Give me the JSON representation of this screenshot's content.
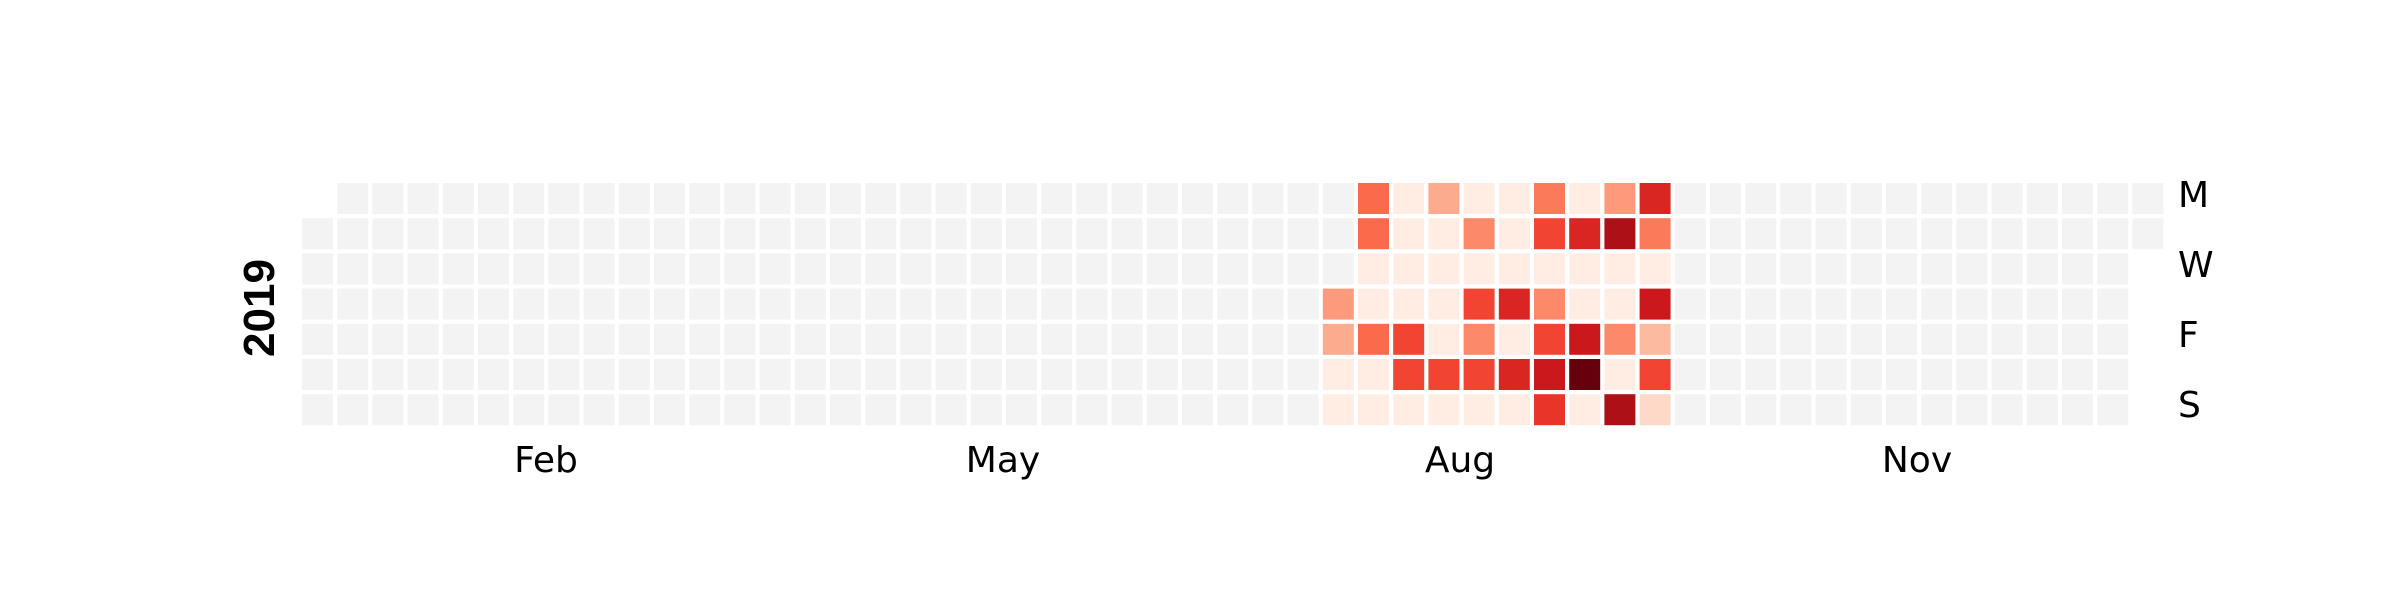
{
  "chart_data": {
    "type": "heatmap",
    "subtype": "calendar",
    "year": "2019",
    "colormap": "Reds",
    "empty_color": "#f3f3f3",
    "grid_lines": "white",
    "legend": "none",
    "row_labels": [
      "M",
      "",
      "W",
      "",
      "F",
      "",
      "S"
    ],
    "col_labels": [
      "Feb",
      "May",
      "Aug",
      "Nov"
    ],
    "value_range": [
      0,
      1
    ],
    "values_note": "Relative intensity (0-1) by week and weekday; days not listed are empty.",
    "active_weeks": [
      {
        "week": 29,
        "days": [
          0,
          0,
          0,
          0.35,
          0.3,
          0.05,
          0.05
        ]
      },
      {
        "week": 30,
        "days": [
          0.5,
          0.5,
          0.05,
          0.05,
          0.5,
          0.05,
          0.05
        ]
      },
      {
        "week": 31,
        "days": [
          0.05,
          0.05,
          0.05,
          0.05,
          0.6,
          0.6,
          0.05
        ]
      },
      {
        "week": 32,
        "days": [
          0.3,
          0.05,
          0.05,
          0.05,
          0.05,
          0.6,
          0.05
        ]
      },
      {
        "week": 33,
        "days": [
          0.05,
          0.4,
          0.05,
          0.6,
          0.4,
          0.6,
          0.05
        ]
      },
      {
        "week": 34,
        "days": [
          0.05,
          0.05,
          0.05,
          0.7,
          0.05,
          0.7,
          0.05
        ]
      },
      {
        "week": 35,
        "days": [
          0.45,
          0.6,
          0.05,
          0.4,
          0.6,
          0.75,
          0.65
        ]
      },
      {
        "week": 36,
        "days": [
          0.05,
          0.7,
          0.05,
          0.05,
          0.75,
          1.0,
          0.05
        ]
      },
      {
        "week": 37,
        "days": [
          0.35,
          0.85,
          0.05,
          0.05,
          0.4,
          0.05,
          0.85
        ]
      },
      {
        "week": 38,
        "days": [
          0.7,
          0.45,
          0.05,
          0.75,
          0.25,
          0.6,
          0.15
        ]
      }
    ]
  }
}
